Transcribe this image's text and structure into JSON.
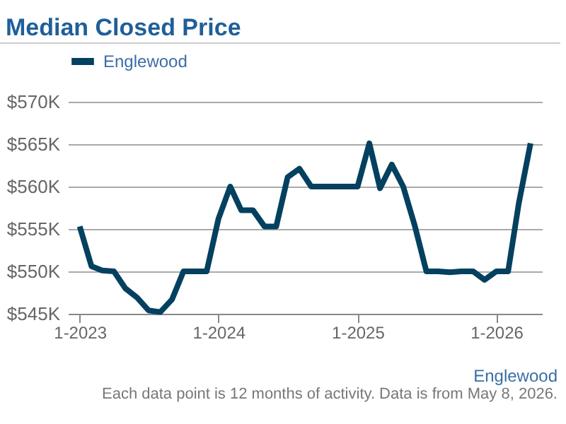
{
  "chart_data": {
    "type": "line",
    "title": "Median Closed Price",
    "x": [
      "2023-01",
      "2023-02",
      "2023-03",
      "2023-04",
      "2023-05",
      "2023-06",
      "2023-07",
      "2023-08",
      "2023-09",
      "2023-10",
      "2023-11",
      "2023-12",
      "2024-01",
      "2024-02",
      "2024-03",
      "2024-04",
      "2024-05",
      "2024-06",
      "2024-07",
      "2024-08",
      "2024-09",
      "2024-10",
      "2024-11",
      "2024-12",
      "2025-01",
      "2025-02",
      "2025-03",
      "2025-04",
      "2025-05",
      "2025-06",
      "2025-07",
      "2025-08",
      "2025-09",
      "2025-10",
      "2025-11",
      "2025-12",
      "2026-01",
      "2026-02",
      "2026-03",
      "2026-04"
    ],
    "series": [
      {
        "name": "Englewood",
        "color": "#04405f",
        "values": [
          555300,
          550600,
          550100,
          550000,
          548000,
          546900,
          545400,
          545200,
          546700,
          550000,
          550000,
          550000,
          556200,
          560000,
          557200,
          557200,
          555300,
          555300,
          561100,
          562100,
          560000,
          560000,
          560000,
          560000,
          560000,
          565100,
          559800,
          562600,
          560000,
          555300,
          550000,
          550000,
          549900,
          550000,
          550000,
          549000,
          550000,
          550000,
          558000,
          565100
        ]
      }
    ],
    "xlim": [
      "2022-12",
      "2026-05"
    ],
    "xticks": [
      {
        "value": "2023-01",
        "label": "1-2023"
      },
      {
        "value": "2024-01",
        "label": "1-2024"
      },
      {
        "value": "2025-01",
        "label": "1-2025"
      },
      {
        "value": "2026-01",
        "label": "1-2026"
      }
    ],
    "ylim": [
      545000,
      570000
    ],
    "yticks": [
      {
        "value": 545000,
        "label": "$545K"
      },
      {
        "value": 550000,
        "label": "$550K"
      },
      {
        "value": 555000,
        "label": "$555K"
      },
      {
        "value": 560000,
        "label": "$560K"
      },
      {
        "value": 565000,
        "label": "$565K"
      },
      {
        "value": 570000,
        "label": "$570K"
      }
    ],
    "grid": "y",
    "legend": "top",
    "line_style": "solid",
    "marker": "none",
    "annotations": [
      "Englewood",
      "Each data point is 12 months of activity. Data is from May 8, 2026."
    ]
  }
}
